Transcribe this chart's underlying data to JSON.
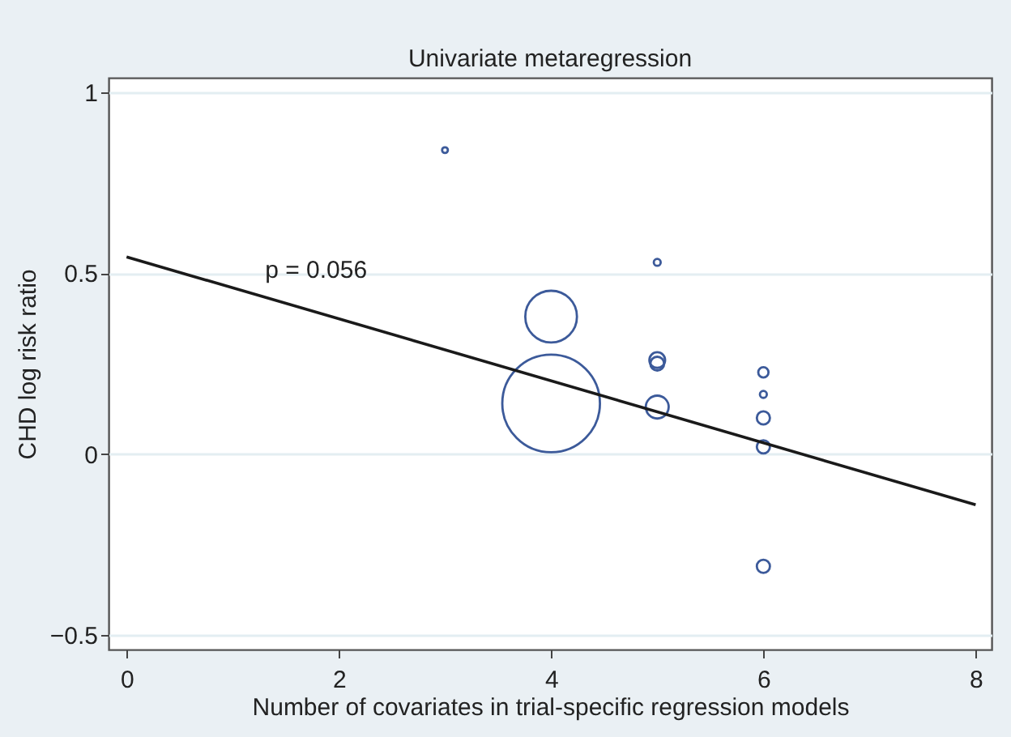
{
  "chart_data": {
    "type": "bubble",
    "title": "Univariate metaregression",
    "xlabel": "Number of covariates in trial-specific regression models",
    "ylabel": "CHD log risk ratio",
    "xlim": [
      -0.17,
      8.15
    ],
    "xticks": [
      0,
      2,
      4,
      6,
      8
    ],
    "ylim": [
      -0.54,
      1.04
    ],
    "yticks": [
      -0.5,
      0,
      0.5,
      1
    ],
    "grid": "y",
    "annotations": [
      "p = 0.056"
    ],
    "series": [
      {
        "color": "#3c5a9a",
        "marker": "circle",
        "x": [
          3,
          4,
          4,
          5,
          5,
          5,
          5,
          6,
          6,
          6,
          6,
          6
        ],
        "values": [
          0.84,
          0.38,
          0.14,
          0.53,
          0.26,
          0.25,
          0.13,
          0.226,
          0.165,
          0.1,
          0.02,
          -0.31
        ],
        "sizes": [
          0.0035,
          0.28,
          1,
          0.005,
          0.026,
          0.02,
          0.055,
          0.011,
          0.005,
          0.018,
          0.018,
          0.018
        ]
      },
      {
        "type": "line",
        "color": "#1a1a1a",
        "x": [
          0,
          8
        ],
        "values": [
          0.545,
          -0.14
        ]
      }
    ]
  }
}
